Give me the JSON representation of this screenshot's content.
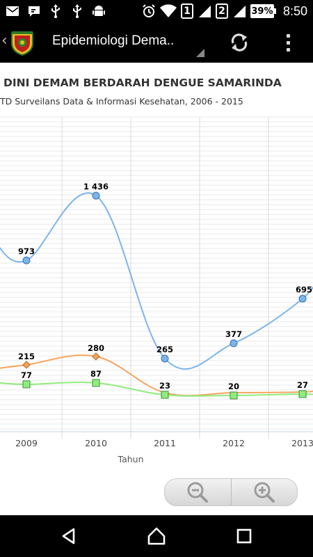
{
  "status_bar": {
    "sim1": "1",
    "sim2": "2",
    "battery": "39%",
    "time": "8:50"
  },
  "app_bar": {
    "title": "Epidemiologi Dema.."
  },
  "chart_data": {
    "type": "line",
    "title": "DINI DEMAM BERDARAH DENGUE SAMARINDA",
    "subtitle": "TD Surveilans Data & Informasi Kesehatan, 2006 - 2015",
    "xlabel": "Tahun",
    "categories": [
      "2009",
      "2010",
      "2011",
      "2012",
      "2013"
    ],
    "grid": true,
    "series": [
      {
        "color": "#7cb5ec",
        "marker": "circle",
        "values": [
          973,
          1436,
          265,
          377,
          695
        ],
        "labels": [
          "973",
          "1 436",
          "265",
          "377",
          "695"
        ]
      },
      {
        "color": "#f7a35c",
        "marker": "diamond",
        "values": [
          215,
          280,
          null,
          null,
          null
        ],
        "labels": [
          "215",
          "280",
          "",
          "",
          ""
        ]
      },
      {
        "color": "#90ed7d",
        "marker": "square",
        "values": [
          77,
          87,
          23,
          20,
          27
        ],
        "labels": [
          "77",
          "87",
          "23",
          "20",
          "27"
        ]
      }
    ]
  },
  "zoom": {
    "out_icon": "zoom-out-icon",
    "in_icon": "zoom-in-icon"
  },
  "nav_bar": {
    "back": "back-icon",
    "home": "home-icon",
    "recents": "recents-icon"
  }
}
